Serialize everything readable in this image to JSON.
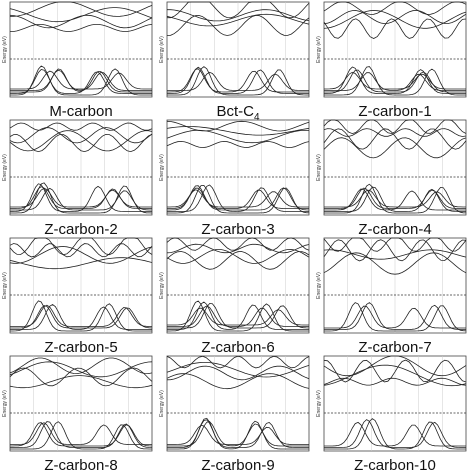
{
  "y_label": "Energy (eV)",
  "panels": [
    {
      "label": "M-carbon"
    },
    {
      "label": "Bct-C",
      "subscript": "4"
    },
    {
      "label": "Z-carbon-1"
    },
    {
      "label": "Z-carbon-2"
    },
    {
      "label": "Z-carbon-3"
    },
    {
      "label": "Z-carbon-4"
    },
    {
      "label": "Z-carbon-5"
    },
    {
      "label": "Z-carbon-6"
    },
    {
      "label": "Z-carbon-7"
    },
    {
      "label": "Z-carbon-8"
    },
    {
      "label": "Z-carbon-9"
    },
    {
      "label": "Z-carbon-10"
    }
  ]
}
